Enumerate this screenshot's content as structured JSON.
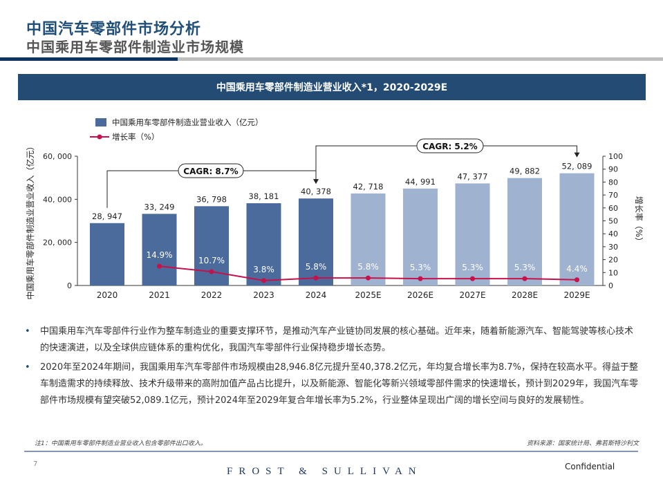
{
  "header": {
    "title": "中国汽车零部件市场分析",
    "subtitle": "中国乘用车零部件制造业市场规模"
  },
  "banner": {
    "title": "中国乘用车零部件制造业营业收入*1，2020-2029E"
  },
  "chart_data": {
    "type": "bar+line",
    "categories": [
      "2020",
      "2021",
      "2022",
      "2023",
      "2024",
      "2025E",
      "2026E",
      "2027E",
      "2028E",
      "2029E"
    ],
    "series": [
      {
        "name": "中国乘用车零部件制造业营业收入（亿元）",
        "type": "bar",
        "axis": "left",
        "values": [
          28947,
          33249,
          36798,
          38181,
          40378,
          42718,
          44991,
          47377,
          49882,
          52089
        ],
        "labels": [
          "28, 947",
          "33, 249",
          "36, 798",
          "38, 181",
          "40, 378",
          "42, 718",
          "44, 991",
          "47, 377",
          "49, 882",
          "52, 089"
        ]
      },
      {
        "name": "增长率（%）",
        "type": "line",
        "axis": "right",
        "values": [
          null,
          14.9,
          10.7,
          3.8,
          5.8,
          5.8,
          5.3,
          5.3,
          5.3,
          4.4
        ],
        "labels": [
          "",
          "14.9%",
          "10.7%",
          "3.8%",
          "5.8%",
          "5.8%",
          "5.3%",
          "5.3%",
          "5.3%",
          "4.4%"
        ]
      }
    ],
    "ylabel_left": "中国乘用车零部件制造业营业收入（亿元）",
    "ylabel_right": "增长率（%）",
    "ylim_left": [
      0,
      60000
    ],
    "yticks_left": [
      "0",
      "20, 000",
      "40, 000",
      "60, 000"
    ],
    "ylim_right": [
      0,
      100
    ],
    "yticks_right": [
      "0",
      "10",
      "20",
      "30",
      "40",
      "50",
      "60",
      "70",
      "80",
      "90",
      "100"
    ],
    "annotations": [
      "CAGR: 8.7%",
      "CAGR: 5.2%"
    ],
    "legend": "top-left",
    "colors": {
      "actual": "#4a6b9c",
      "forecast": "#9fb2d0",
      "line": "#c8104a"
    }
  },
  "bullets": [
    "中国乘用车汽车零部件行业作为整车制造业的重要支撑环节，是推动汽车产业链协同发展的核心基础。近年来，随着新能源汽车、智能驾驶等核心技术的快速演进，以及全球供应链体系的重构优化，我国汽车零部件行业保持稳步增长态势。",
    "2020年至2024年期间，我国乘用车汽车零部件市场规模由28,946.8亿元提升至40,378.2亿元，年均复合增长率为8.7%，保持在较高水平。得益于整车制造需求的持续释放、技术升级带来的高附加值产品占比提升，以及新能源、智能化等新兴领域零部件需求的快速增长，预计到2029年，我国汽车零部件市场规模有望突破52,089.1亿元，预计2024年至2029年复合年增长率为5.2%，行业整体呈现出广阔的增长空间与良好的发展韧性。"
  ],
  "footer": {
    "note": "注1：中国乘用车零部件制造业营业收入包含零部件出口收入。",
    "source": "资料来源：国家统计局、弗若斯特沙利文",
    "page": "7",
    "logo": "FROST & SULLIVAN",
    "confidential": "Confidential"
  }
}
